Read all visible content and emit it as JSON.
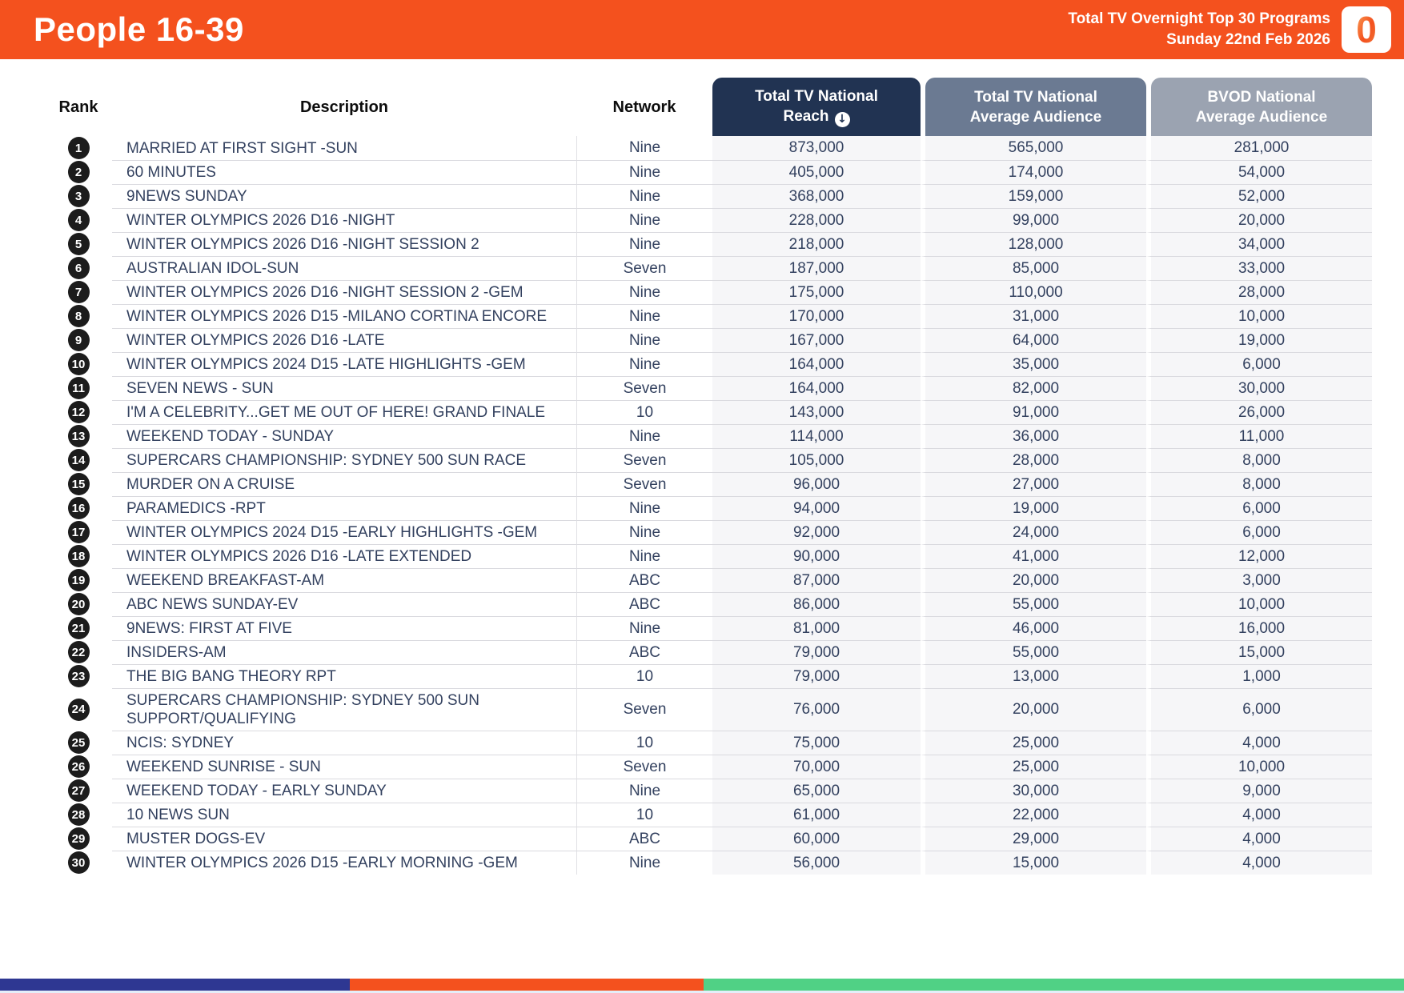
{
  "header": {
    "title": "People 16-39",
    "subtitle_line1": "Total TV Overnight Top 30 Programs",
    "subtitle_line2": "Sunday 22nd Feb 2026",
    "logo_text": "0"
  },
  "theme": {
    "topbar_bg": "#F4511E",
    "reach_pill_bg": "#213352",
    "avg_pill_bg": "#6B7A92",
    "bvod_pill_bg": "#9BA3B1",
    "numeric_column_bg": "#F6F6F8",
    "rank_badge_bg": "#1C1C1C",
    "row_text": "#33415F"
  },
  "table": {
    "head": {
      "rank": "Rank",
      "description": "Description",
      "network": "Network",
      "reach": {
        "line1": "Total TV National",
        "line2": "Reach"
      },
      "avg": {
        "line1": "Total TV National",
        "line2": "Average Audience"
      },
      "bvod": {
        "line1": "BVOD National",
        "line2": "Average Audience"
      }
    },
    "sort_icon_glyph": "↓",
    "rows": [
      {
        "rank": 1,
        "description": "MARRIED AT FIRST SIGHT -SUN",
        "network": "Nine",
        "reach": "873,000",
        "avg": "565,000",
        "bvod": "281,000"
      },
      {
        "rank": 2,
        "description": "60 MINUTES",
        "network": "Nine",
        "reach": "405,000",
        "avg": "174,000",
        "bvod": "54,000"
      },
      {
        "rank": 3,
        "description": "9NEWS SUNDAY",
        "network": "Nine",
        "reach": "368,000",
        "avg": "159,000",
        "bvod": "52,000"
      },
      {
        "rank": 4,
        "description": "WINTER OLYMPICS 2026 D16 -NIGHT",
        "network": "Nine",
        "reach": "228,000",
        "avg": "99,000",
        "bvod": "20,000"
      },
      {
        "rank": 5,
        "description": "WINTER OLYMPICS 2026 D16 -NIGHT SESSION 2",
        "network": "Nine",
        "reach": "218,000",
        "avg": "128,000",
        "bvod": "34,000"
      },
      {
        "rank": 6,
        "description": "AUSTRALIAN IDOL-SUN",
        "network": "Seven",
        "reach": "187,000",
        "avg": "85,000",
        "bvod": "33,000"
      },
      {
        "rank": 7,
        "description": "WINTER OLYMPICS 2026 D16 -NIGHT SESSION 2 -GEM",
        "network": "Nine",
        "reach": "175,000",
        "avg": "110,000",
        "bvod": "28,000"
      },
      {
        "rank": 8,
        "description": "WINTER OLYMPICS 2026 D15 -MILANO CORTINA ENCORE",
        "network": "Nine",
        "reach": "170,000",
        "avg": "31,000",
        "bvod": "10,000"
      },
      {
        "rank": 9,
        "description": "WINTER OLYMPICS 2026 D16 -LATE",
        "network": "Nine",
        "reach": "167,000",
        "avg": "64,000",
        "bvod": "19,000"
      },
      {
        "rank": 10,
        "description": "WINTER OLYMPICS 2024 D15 -LATE HIGHLIGHTS -GEM",
        "network": "Nine",
        "reach": "164,000",
        "avg": "35,000",
        "bvod": "6,000"
      },
      {
        "rank": 11,
        "description": "SEVEN NEWS - SUN",
        "network": "Seven",
        "reach": "164,000",
        "avg": "82,000",
        "bvod": "30,000"
      },
      {
        "rank": 12,
        "description": "I'M A CELEBRITY...GET ME OUT OF HERE! GRAND FINALE",
        "network": "10",
        "reach": "143,000",
        "avg": "91,000",
        "bvod": "26,000"
      },
      {
        "rank": 13,
        "description": "WEEKEND TODAY - SUNDAY",
        "network": "Nine",
        "reach": "114,000",
        "avg": "36,000",
        "bvod": "11,000"
      },
      {
        "rank": 14,
        "description": "SUPERCARS CHAMPIONSHIP: SYDNEY 500 SUN RACE",
        "network": "Seven",
        "reach": "105,000",
        "avg": "28,000",
        "bvod": "8,000"
      },
      {
        "rank": 15,
        "description": "MURDER ON A CRUISE",
        "network": "Seven",
        "reach": "96,000",
        "avg": "27,000",
        "bvod": "8,000"
      },
      {
        "rank": 16,
        "description": "PARAMEDICS -RPT",
        "network": "Nine",
        "reach": "94,000",
        "avg": "19,000",
        "bvod": "6,000"
      },
      {
        "rank": 17,
        "description": "WINTER OLYMPICS 2024 D15 -EARLY HIGHLIGHTS -GEM",
        "network": "Nine",
        "reach": "92,000",
        "avg": "24,000",
        "bvod": "6,000"
      },
      {
        "rank": 18,
        "description": "WINTER OLYMPICS 2026 D16 -LATE EXTENDED",
        "network": "Nine",
        "reach": "90,000",
        "avg": "41,000",
        "bvod": "12,000"
      },
      {
        "rank": 19,
        "description": "WEEKEND BREAKFAST-AM",
        "network": "ABC",
        "reach": "87,000",
        "avg": "20,000",
        "bvod": "3,000"
      },
      {
        "rank": 20,
        "description": "ABC NEWS SUNDAY-EV",
        "network": "ABC",
        "reach": "86,000",
        "avg": "55,000",
        "bvod": "10,000"
      },
      {
        "rank": 21,
        "description": "9NEWS: FIRST AT FIVE",
        "network": "Nine",
        "reach": "81,000",
        "avg": "46,000",
        "bvod": "16,000"
      },
      {
        "rank": 22,
        "description": "INSIDERS-AM",
        "network": "ABC",
        "reach": "79,000",
        "avg": "55,000",
        "bvod": "15,000"
      },
      {
        "rank": 23,
        "description": "THE BIG BANG THEORY RPT",
        "network": "10",
        "reach": "79,000",
        "avg": "13,000",
        "bvod": "1,000"
      },
      {
        "rank": 24,
        "description": "SUPERCARS CHAMPIONSHIP: SYDNEY 500 SUN SUPPORT/QUALIFYING",
        "network": "Seven",
        "reach": "76,000",
        "avg": "20,000",
        "bvod": "6,000"
      },
      {
        "rank": 25,
        "description": "NCIS: SYDNEY",
        "network": "10",
        "reach": "75,000",
        "avg": "25,000",
        "bvod": "4,000"
      },
      {
        "rank": 26,
        "description": "WEEKEND SUNRISE - SUN",
        "network": "Seven",
        "reach": "70,000",
        "avg": "25,000",
        "bvod": "10,000"
      },
      {
        "rank": 27,
        "description": "WEEKEND TODAY - EARLY SUNDAY",
        "network": "Nine",
        "reach": "65,000",
        "avg": "30,000",
        "bvod": "9,000"
      },
      {
        "rank": 28,
        "description": "10 NEWS SUN",
        "network": "10",
        "reach": "61,000",
        "avg": "22,000",
        "bvod": "4,000"
      },
      {
        "rank": 29,
        "description": "MUSTER DOGS-EV",
        "network": "ABC",
        "reach": "60,000",
        "avg": "29,000",
        "bvod": "4,000"
      },
      {
        "rank": 30,
        "description": "WINTER OLYMPICS 2026 D15 -EARLY MORNING -GEM",
        "network": "Nine",
        "reach": "56,000",
        "avg": "15,000",
        "bvod": "4,000"
      }
    ]
  },
  "footer": {
    "segments": [
      {
        "name": "blue",
        "color": "#2E3792",
        "width_pct": 24.9
      },
      {
        "name": "orange",
        "color": "#F4511E",
        "width_pct": 25.2
      },
      {
        "name": "green",
        "color": "#50D185",
        "width_pct": 49.9
      }
    ]
  }
}
